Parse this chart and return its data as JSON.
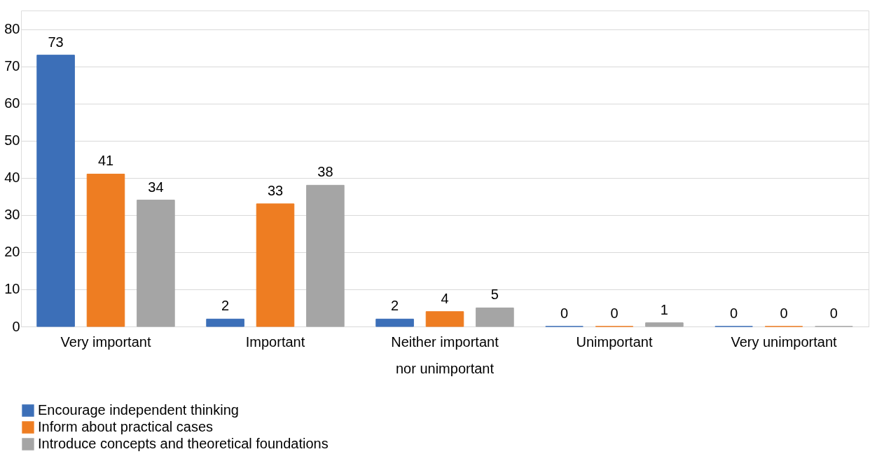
{
  "chart_data": {
    "type": "bar",
    "categories": [
      "Very important",
      "Important",
      "Neither important\nnor unimportant",
      "Unimportant",
      "Very unimportant"
    ],
    "series": [
      {
        "name": "Encourage independent thinking",
        "color": "#3c6fb8",
        "values": [
          73,
          2,
          2,
          0,
          0
        ]
      },
      {
        "name": "Inform about practical cases",
        "color": "#ee7d22",
        "values": [
          41,
          33,
          4,
          0,
          0
        ]
      },
      {
        "name": "Introduce concepts and theoretical foundations",
        "color": "#a5a5a5",
        "values": [
          34,
          38,
          5,
          1,
          0
        ]
      }
    ],
    "ylim": [
      0,
      85
    ],
    "yticks": [
      0,
      10,
      20,
      30,
      40,
      50,
      60,
      70,
      80
    ],
    "grid": "y",
    "legend": "bottom",
    "data_labels": true
  }
}
